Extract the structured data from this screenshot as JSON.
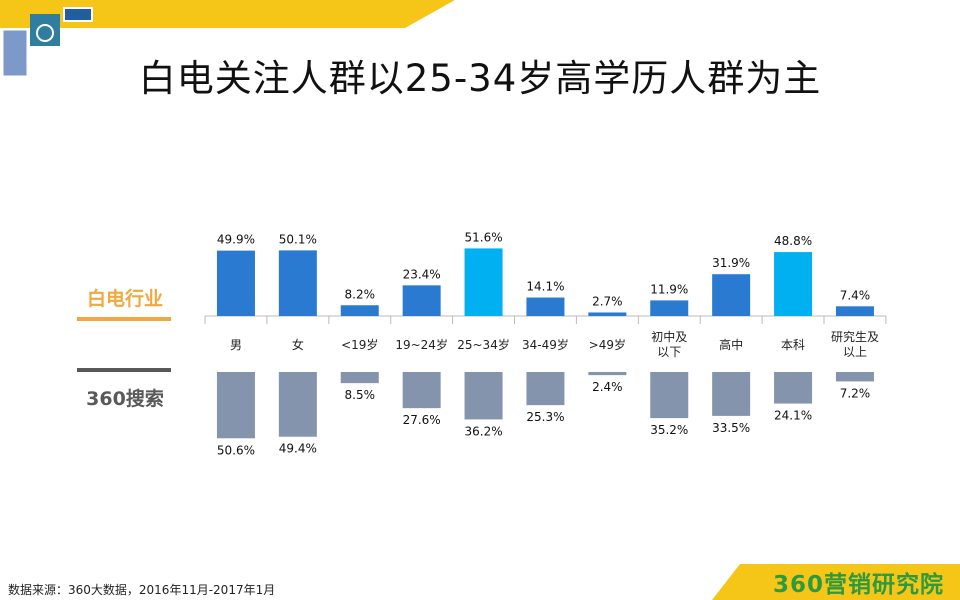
{
  "title": "白电关注人群以25-34岁高学历人群为主",
  "legend": {
    "top_label": "白电行业",
    "bottom_label": "360搜索"
  },
  "colors": {
    "top_bar": "#2a7ad2",
    "top_highlight": "#00b0f0",
    "bottom_bar": "#8494ad",
    "accent_yellow": "#f5c518",
    "top_label": "#f0a93e",
    "bottom_label": "#595959"
  },
  "source": "数据来源：360大数据，2016年11月-2017年1月",
  "brand": {
    "number": "360",
    "text": "营销研究院"
  },
  "chart_data": {
    "type": "bar",
    "categories": [
      "男",
      "女",
      "<19岁",
      "19~24岁",
      "25~34岁",
      "34-49岁",
      ">49岁",
      "初中及以下",
      "高中",
      "本科",
      "研究生及以上"
    ],
    "series": [
      {
        "name": "白电行业",
        "values": [
          49.9,
          50.1,
          8.2,
          23.4,
          51.6,
          14.1,
          2.7,
          11.9,
          31.9,
          48.8,
          7.4
        ],
        "highlight": [
          false,
          false,
          false,
          false,
          true,
          false,
          false,
          false,
          false,
          true,
          false
        ]
      },
      {
        "name": "360搜索",
        "values": [
          50.6,
          49.4,
          8.5,
          27.6,
          36.2,
          25.3,
          2.4,
          35.2,
          33.5,
          24.1,
          7.2
        ]
      }
    ],
    "value_suffix": "%"
  }
}
